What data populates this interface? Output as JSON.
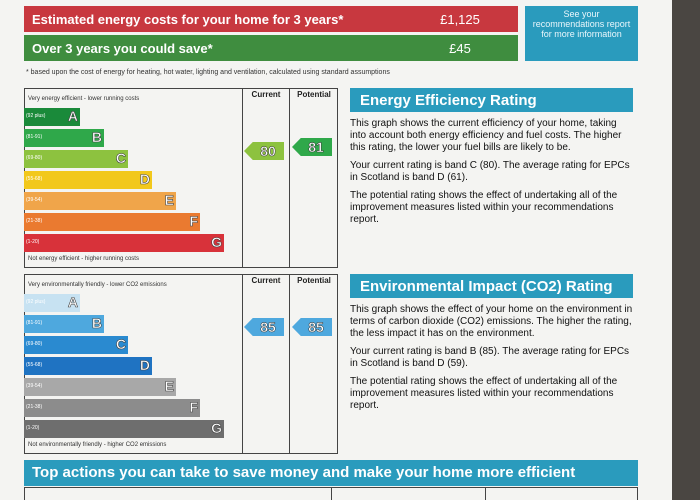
{
  "costs": {
    "rows": [
      {
        "label": "Estimated energy costs for your home for 3 years*",
        "value": "£1,125",
        "color": "#c8383f"
      },
      {
        "label": "Over 3 years you could save*",
        "value": "£45",
        "color": "#3f8d3f"
      }
    ],
    "note": "See your recommendations report for more information",
    "footnote": "* based upon the cost of energy for heating, hot water, lighting and ventilation, calculated using standard assumptions"
  },
  "energy_graph": {
    "top_label": "Very energy efficient - lower running costs",
    "bottom_label": "Not energy efficient - higher running costs",
    "current_header": "Current",
    "potential_header": "Potential",
    "current_value": "80",
    "potential_value": "81",
    "current_band": "C",
    "potential_band": "B",
    "bands": [
      {
        "letter": "A",
        "range": "(92 plus)",
        "color": "#1a8a3a"
      },
      {
        "letter": "B",
        "range": "(81-91)",
        "color": "#2fa84a"
      },
      {
        "letter": "C",
        "range": "(69-80)",
        "color": "#8dc23f"
      },
      {
        "letter": "D",
        "range": "(55-68)",
        "color": "#f2c81c"
      },
      {
        "letter": "E",
        "range": "(39-54)",
        "color": "#f0a54a"
      },
      {
        "letter": "F",
        "range": "(21-38)",
        "color": "#ea7a30"
      },
      {
        "letter": "G",
        "range": "(1-20)",
        "color": "#d8323a"
      }
    ]
  },
  "env_graph": {
    "top_label": "Very environmentally friendly - lower CO2 emissions",
    "bottom_label": "Not environmentally friendly - higher CO2 emissions",
    "current_header": "Current",
    "potential_header": "Potential",
    "current_value": "85",
    "potential_value": "85",
    "current_band": "B",
    "potential_band": "B",
    "bands": [
      {
        "letter": "A",
        "range": "(92 plus)",
        "color": "#c7e2f2"
      },
      {
        "letter": "B",
        "range": "(81-91)",
        "color": "#4ea8de"
      },
      {
        "letter": "C",
        "range": "(69-80)",
        "color": "#2a8ad0"
      },
      {
        "letter": "D",
        "range": "(55-68)",
        "color": "#1f73c2"
      },
      {
        "letter": "E",
        "range": "(39-54)",
        "color": "#a8a8a8"
      },
      {
        "letter": "F",
        "range": "(21-38)",
        "color": "#8c8c8c"
      },
      {
        "letter": "G",
        "range": "(1-20)",
        "color": "#6e6e6e"
      }
    ]
  },
  "energy_panel": {
    "title": "Energy Efficiency Rating",
    "p1": "This graph shows the current efficiency of your home, taking into account both energy efficiency and fuel costs. The higher this rating, the lower your fuel bills are likely to be.",
    "p2": "Your current rating is band C (80). The average rating for EPCs in Scotland is band D (61).",
    "p3": "The potential rating shows the effect of undertaking all of the improvement measures listed within your recommendations report."
  },
  "env_panel": {
    "title": "Environmental Impact (CO2) Rating",
    "p1": "This graph shows the effect of your home on the environment in terms of carbon dioxide (CO2) emissions. The higher the rating, the less impact it has on the environment.",
    "p2": "Your current rating is band B (85). The average rating for EPCs in Scotland is band D (59).",
    "p3": "The potential rating shows the effect of undertaking all of the improvement measures listed within your recommendations report."
  },
  "actions_title": "Top actions you can take to save money and make your home more efficient"
}
